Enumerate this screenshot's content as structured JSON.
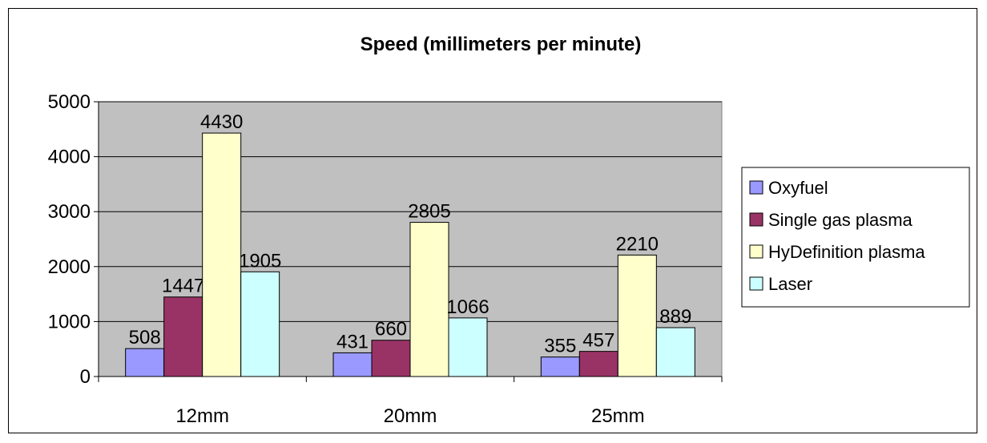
{
  "chart_data": {
    "type": "bar",
    "title": "Speed (millimeters per minute)",
    "xlabel": "",
    "ylabel": "",
    "categories": [
      "12mm",
      "20mm",
      "25mm"
    ],
    "ylim": [
      0,
      5000
    ],
    "yticks": [
      0,
      1000,
      2000,
      3000,
      4000,
      5000
    ],
    "grid": true,
    "legend_position": "right",
    "plot_background": "#c0c0c0",
    "series": [
      {
        "name": "Oxyfuel",
        "color": "#9999ff",
        "values": [
          508,
          431,
          355
        ]
      },
      {
        "name": "Single gas plasma",
        "color": "#993366",
        "values": [
          1447,
          660,
          457
        ]
      },
      {
        "name": "HyDefinition plasma",
        "color": "#ffffcc",
        "values": [
          4430,
          2805,
          2210
        ]
      },
      {
        "name": "Laser",
        "color": "#ccffff",
        "values": [
          1905,
          1066,
          889
        ]
      }
    ]
  }
}
